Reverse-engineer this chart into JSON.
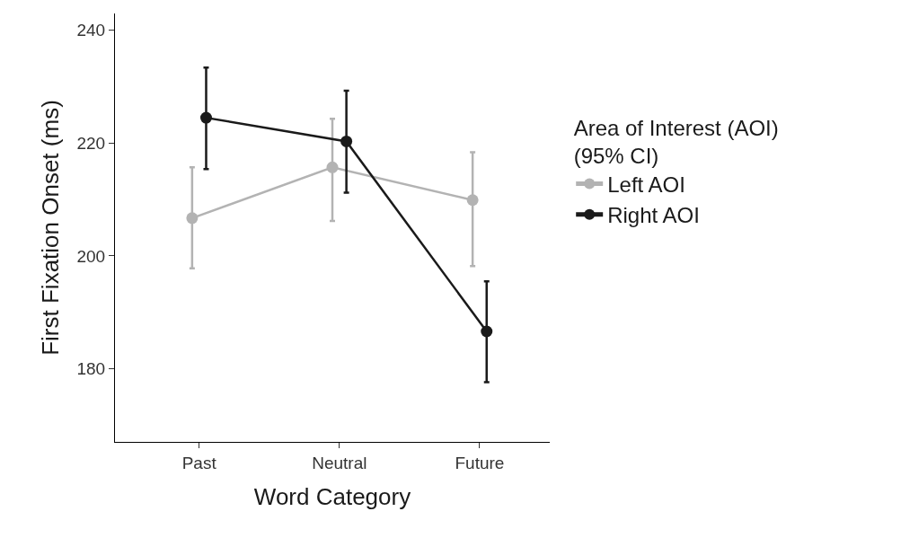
{
  "chart_data": {
    "type": "line",
    "xlabel": "Word Category",
    "ylabel": "First Fixation Onset (ms)",
    "legend_title": "Area of Interest (AOI)\n(95% CI)",
    "categories": [
      "Past",
      "Neutral",
      "Future"
    ],
    "series": [
      {
        "name": "Left AOI",
        "color": "#b3b3b3",
        "values": [
          206.7,
          215.7,
          209.9
        ],
        "errors": [
          [
            197.8,
            215.7
          ],
          [
            206.2,
            224.3
          ],
          [
            198.2,
            218.4
          ]
        ]
      },
      {
        "name": "Right AOI",
        "color": "#1a1a1a",
        "values": [
          224.5,
          220.3,
          186.6
        ],
        "errors": [
          [
            215.4,
            233.4
          ],
          [
            211.2,
            229.3
          ],
          [
            177.6,
            195.5
          ]
        ]
      }
    ],
    "ylim": [
      167,
      243
    ],
    "yticks": [
      180,
      200,
      220,
      240
    ],
    "grid": false,
    "legend": "right",
    "marker": "circle",
    "line_style": "solid"
  }
}
